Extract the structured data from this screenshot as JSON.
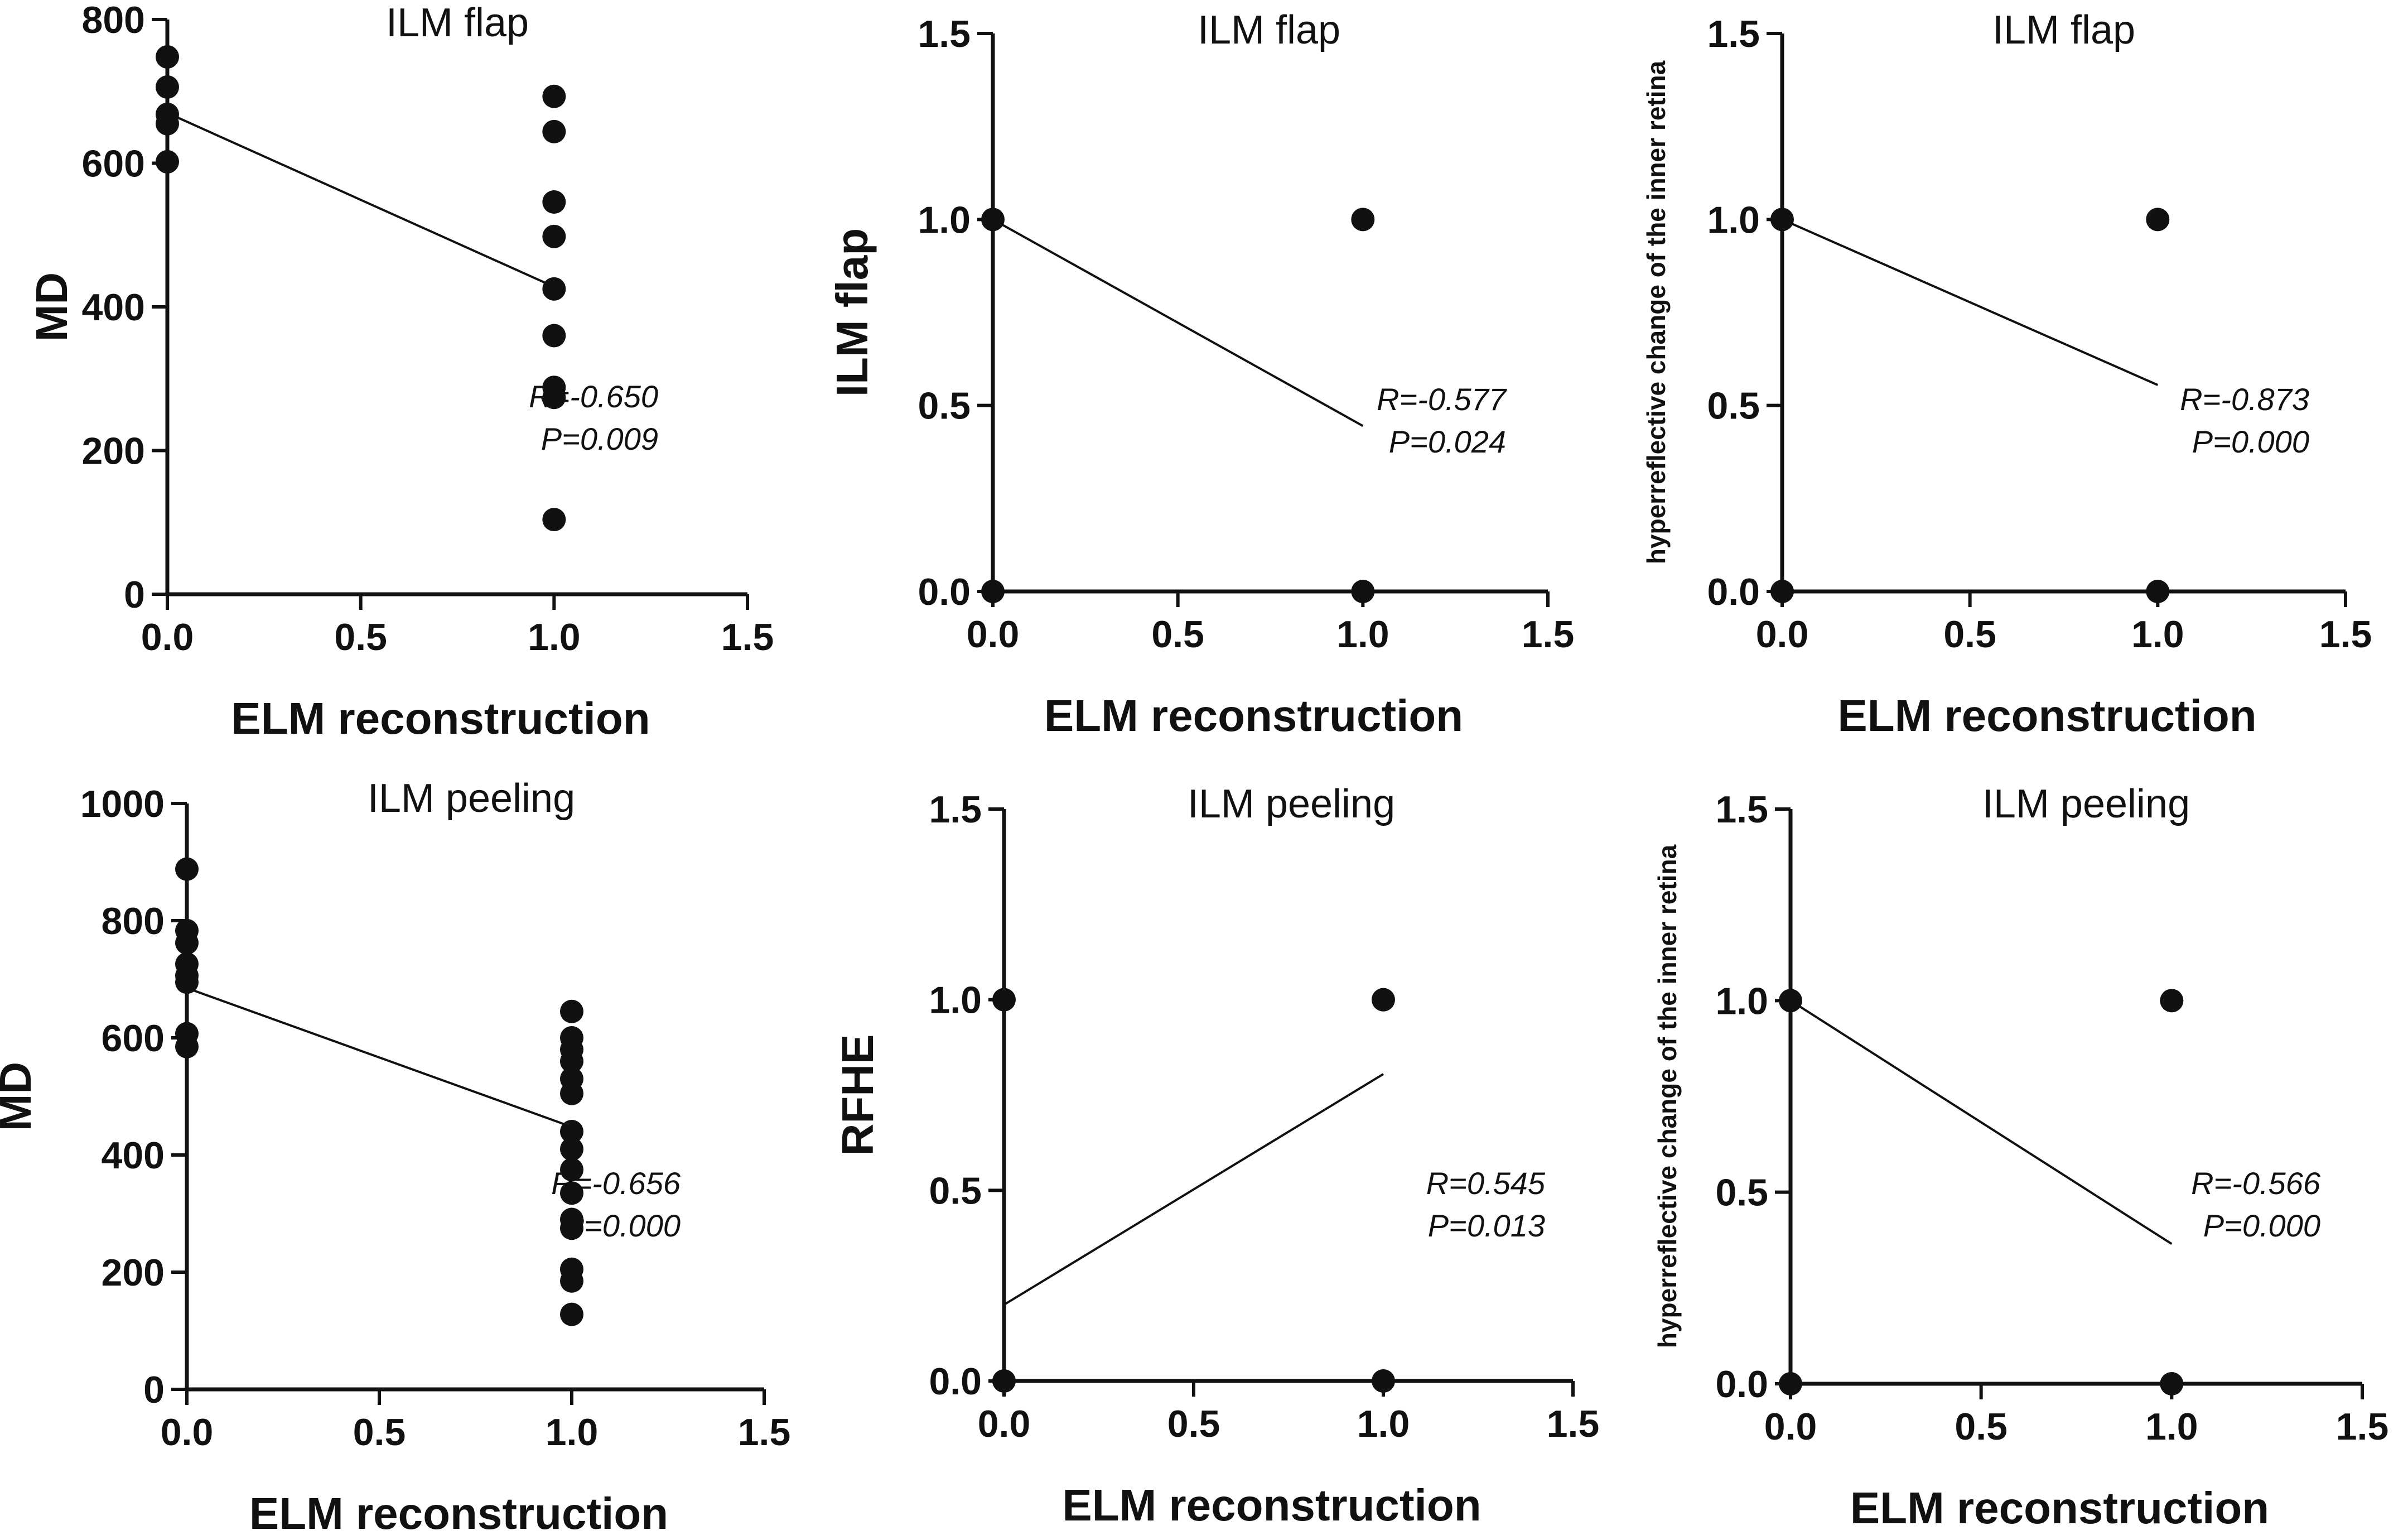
{
  "figure": {
    "background": "#ffffff",
    "ink": "#111111"
  },
  "chart_data": [
    {
      "type": "scatter",
      "title": "ILM flap",
      "xlabel": "ELM reconstruction",
      "ylabel": "MD",
      "xlim": [
        0,
        1.5
      ],
      "ylim": [
        0,
        800
      ],
      "xticks": [
        "0.0",
        "0.5",
        "1.0",
        "1.5"
      ],
      "yticks": [
        "0",
        "200",
        "400",
        "600",
        "800"
      ],
      "points": [
        {
          "x": 0,
          "y": 748
        },
        {
          "x": 0,
          "y": 706
        },
        {
          "x": 0,
          "y": 668
        },
        {
          "x": 0,
          "y": 655
        },
        {
          "x": 0,
          "y": 602
        },
        {
          "x": 1,
          "y": 693
        },
        {
          "x": 1,
          "y": 644
        },
        {
          "x": 1,
          "y": 546
        },
        {
          "x": 1,
          "y": 498
        },
        {
          "x": 1,
          "y": 425
        },
        {
          "x": 1,
          "y": 360
        },
        {
          "x": 1,
          "y": 288
        },
        {
          "x": 1,
          "y": 274
        },
        {
          "x": 1,
          "y": 104
        }
      ],
      "fit_line": {
        "x": [
          0,
          1
        ],
        "y": [
          670,
          428
        ]
      },
      "stats": [
        "R=-0.650",
        "P=0.009"
      ]
    },
    {
      "type": "scatter",
      "title": "ILM flap",
      "xlabel": "ELM reconstruction",
      "ylabel": "ILM flap",
      "xlim": [
        0,
        1.5
      ],
      "ylim": [
        0,
        1.5
      ],
      "xticks": [
        "0.0",
        "0.5",
        "1.0",
        "1.5"
      ],
      "yticks": [
        "0.0",
        "0.5",
        "1.0",
        "1.5"
      ],
      "points": [
        {
          "x": 0,
          "y": 1
        },
        {
          "x": 0,
          "y": 0
        },
        {
          "x": 1,
          "y": 1
        },
        {
          "x": 1,
          "y": 0
        }
      ],
      "fit_line": {
        "x": [
          0,
          1
        ],
        "y": [
          1.0,
          0.445
        ]
      },
      "stats": [
        "R=-0.577",
        "P=0.024"
      ]
    },
    {
      "type": "scatter",
      "title": "ILM flap",
      "xlabel": "ELM reconstruction",
      "ylabel": "hyperreflective change of the inner retina",
      "xlim": [
        0,
        1.5
      ],
      "ylim": [
        0,
        1.5
      ],
      "xticks": [
        "0.0",
        "0.5",
        "1.0",
        "1.5"
      ],
      "yticks": [
        "0.0",
        "0.5",
        "1.0",
        "1.5"
      ],
      "points": [
        {
          "x": 0,
          "y": 1
        },
        {
          "x": 0,
          "y": 0
        },
        {
          "x": 1,
          "y": 1
        },
        {
          "x": 1,
          "y": 0
        }
      ],
      "fit_line": {
        "x": [
          0,
          1
        ],
        "y": [
          1.0,
          0.555
        ]
      },
      "stats": [
        "R=-0.873",
        "P=0.000"
      ]
    },
    {
      "type": "scatter",
      "title": "ILM peeling",
      "xlabel": "ELM reconstruction",
      "ylabel": "MD",
      "xlim": [
        0,
        1.5
      ],
      "ylim": [
        0,
        1000
      ],
      "xticks": [
        "0.0",
        "0.5",
        "1.0",
        "1.5"
      ],
      "yticks": [
        "0",
        "200",
        "400",
        "600",
        "800",
        "1000"
      ],
      "points": [
        {
          "x": 0,
          "y": 888
        },
        {
          "x": 0,
          "y": 783
        },
        {
          "x": 0,
          "y": 762
        },
        {
          "x": 0,
          "y": 726
        },
        {
          "x": 0,
          "y": 706
        },
        {
          "x": 0,
          "y": 695
        },
        {
          "x": 0,
          "y": 607
        },
        {
          "x": 0,
          "y": 585
        },
        {
          "x": 1,
          "y": 645
        },
        {
          "x": 1,
          "y": 600
        },
        {
          "x": 1,
          "y": 580
        },
        {
          "x": 1,
          "y": 560
        },
        {
          "x": 1,
          "y": 530
        },
        {
          "x": 1,
          "y": 505
        },
        {
          "x": 1,
          "y": 440
        },
        {
          "x": 1,
          "y": 410
        },
        {
          "x": 1,
          "y": 375
        },
        {
          "x": 1,
          "y": 335
        },
        {
          "x": 1,
          "y": 290
        },
        {
          "x": 1,
          "y": 275
        },
        {
          "x": 1,
          "y": 205
        },
        {
          "x": 1,
          "y": 185
        },
        {
          "x": 1,
          "y": 128
        }
      ],
      "fit_line": {
        "x": [
          0,
          1
        ],
        "y": [
          685,
          448
        ]
      },
      "stats": [
        "R=-0.656",
        "P=0.000"
      ]
    },
    {
      "type": "scatter",
      "title": "ILM peeling",
      "xlabel": "ELM reconstruction",
      "ylabel": "RFHE",
      "xlim": [
        0,
        1.5
      ],
      "ylim": [
        0,
        1.5
      ],
      "xticks": [
        "0.0",
        "0.5",
        "1.0",
        "1.5"
      ],
      "yticks": [
        "0.0",
        "0.5",
        "1.0",
        "1.5"
      ],
      "points": [
        {
          "x": 0,
          "y": 1
        },
        {
          "x": 0,
          "y": 0
        },
        {
          "x": 1,
          "y": 1
        },
        {
          "x": 1,
          "y": 0
        }
      ],
      "fit_line": {
        "x": [
          0,
          1
        ],
        "y": [
          0.2,
          0.805
        ]
      },
      "stats": [
        "R=0.545",
        "P=0.013"
      ]
    },
    {
      "type": "scatter",
      "title": "ILM peeling",
      "xlabel": "ELM reconstruction",
      "ylabel": "hyperreflective change of the inner retina",
      "xlim": [
        0,
        1.5
      ],
      "ylim": [
        0,
        1.5
      ],
      "xticks": [
        "0.0",
        "0.5",
        "1.0",
        "1.5"
      ],
      "yticks": [
        "0.0",
        "0.5",
        "1.0",
        "1.5"
      ],
      "points": [
        {
          "x": 0,
          "y": 1
        },
        {
          "x": 0,
          "y": 0
        },
        {
          "x": 1,
          "y": 1
        },
        {
          "x": 1,
          "y": 0
        }
      ],
      "fit_line": {
        "x": [
          0,
          1
        ],
        "y": [
          1.0,
          0.365
        ]
      },
      "stats": [
        "R=-0.566",
        "P=0.000"
      ]
    }
  ]
}
